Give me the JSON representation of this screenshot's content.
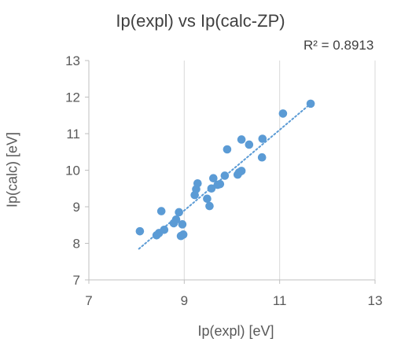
{
  "chart_data": {
    "type": "scatter",
    "title": "Ip(expl) vs Ip(calc-ZP)",
    "xlabel": "Ip(expl) [eV]",
    "ylabel": "Ip(calc) [eV]",
    "xlim": [
      7,
      13
    ],
    "ylim": [
      7,
      13
    ],
    "xticks": [
      "7",
      "9",
      "11",
      "13"
    ],
    "yticks": [
      "7",
      "8",
      "9",
      "10",
      "11",
      "12",
      "13"
    ],
    "grid": "vertical",
    "marker_color": "#5b9bd5",
    "trendline": {
      "style": "dotted",
      "color": "#5b9bd5",
      "r_squared_label": "R² = 0.8913",
      "x": [
        8.05,
        11.65
      ],
      "y": [
        7.85,
        11.82
      ]
    },
    "points": [
      {
        "x": 8.07,
        "y": 8.33
      },
      {
        "x": 8.42,
        "y": 8.22
      },
      {
        "x": 8.47,
        "y": 8.28
      },
      {
        "x": 8.52,
        "y": 8.88
      },
      {
        "x": 8.58,
        "y": 8.37
      },
      {
        "x": 8.78,
        "y": 8.55
      },
      {
        "x": 8.83,
        "y": 8.65
      },
      {
        "x": 8.89,
        "y": 8.85
      },
      {
        "x": 8.93,
        "y": 8.2
      },
      {
        "x": 8.96,
        "y": 8.52
      },
      {
        "x": 8.98,
        "y": 8.24
      },
      {
        "x": 9.22,
        "y": 9.32
      },
      {
        "x": 9.25,
        "y": 9.48
      },
      {
        "x": 9.28,
        "y": 9.64
      },
      {
        "x": 9.48,
        "y": 9.22
      },
      {
        "x": 9.53,
        "y": 9.02
      },
      {
        "x": 9.57,
        "y": 9.5
      },
      {
        "x": 9.61,
        "y": 9.78
      },
      {
        "x": 9.7,
        "y": 9.6
      },
      {
        "x": 9.75,
        "y": 9.62
      },
      {
        "x": 9.85,
        "y": 9.85
      },
      {
        "x": 9.9,
        "y": 10.57
      },
      {
        "x": 10.12,
        "y": 9.88
      },
      {
        "x": 10.15,
        "y": 9.94
      },
      {
        "x": 10.2,
        "y": 9.98
      },
      {
        "x": 10.2,
        "y": 10.84
      },
      {
        "x": 10.36,
        "y": 10.7
      },
      {
        "x": 10.63,
        "y": 10.35
      },
      {
        "x": 10.64,
        "y": 10.86
      },
      {
        "x": 11.07,
        "y": 11.55
      },
      {
        "x": 11.65,
        "y": 11.82
      }
    ]
  }
}
